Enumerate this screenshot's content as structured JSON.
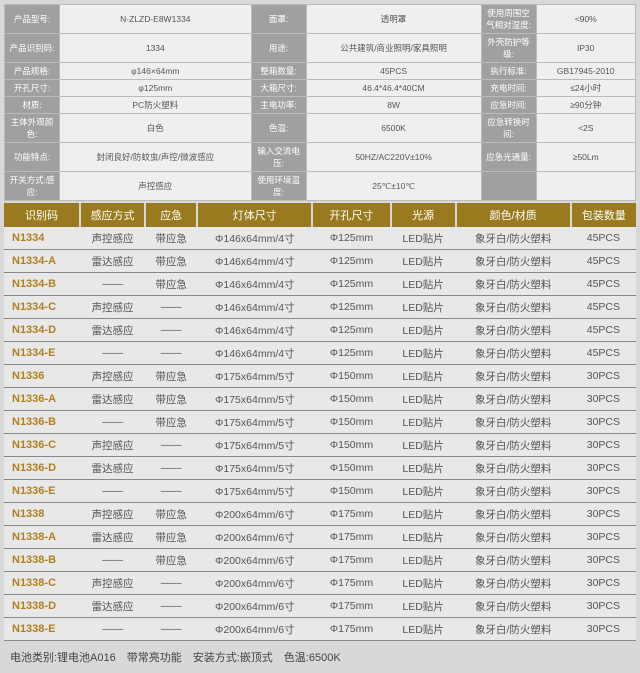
{
  "spec": {
    "rows": [
      [
        {
          "l": "产品型号:",
          "v": "N-ZLZD-E8W1334"
        },
        {
          "l": "面罩:",
          "v": "透明罩"
        },
        {
          "l": "使用周围空气相对湿度:",
          "v": "<90%",
          "span": 2
        }
      ],
      [
        {
          "l": "产品识别码:",
          "v": "1334"
        },
        {
          "l": "用途:",
          "v": "公共建筑/商业照明/家具照明"
        },
        {
          "l": "外壳防护等级:",
          "v": "IP30"
        }
      ],
      [
        {
          "l": "产品规格:",
          "v": "φ146×64mm"
        },
        {
          "l": "整箱数量:",
          "v": "45PCS"
        },
        {
          "l": "执行标准:",
          "v": "GB17945-2010"
        }
      ],
      [
        {
          "l": "开孔尺寸:",
          "v": "φ125mm"
        },
        {
          "l": "大箱尺寸:",
          "v": "46.4*46.4*40CM"
        },
        {
          "l": "充电时间:",
          "v": "≤24小时"
        }
      ],
      [
        {
          "l": "材质:",
          "v": "PC防火塑料"
        },
        {
          "l": "主电功率:",
          "v": "8W"
        },
        {
          "l": "应急时间:",
          "v": "≥90分钟"
        }
      ],
      [
        {
          "l": "主体外观颜色:",
          "v": "白色"
        },
        {
          "l": "色温:",
          "v": "6500K"
        },
        {
          "l": "应急转换时间:",
          "v": "<2S"
        }
      ],
      [
        {
          "l": "功能特点:",
          "v": "封闭良好/防蚊虫/声控/微波感应"
        },
        {
          "l": "输入交流电压:",
          "v": "50HZ/AC220V±10%"
        },
        {
          "l": "应急光通量:",
          "v": "≥50Lm"
        }
      ],
      [
        {
          "l": "开关方式:感应:",
          "v": "声控感应"
        },
        {
          "l": "使用环境温度:",
          "v": "25℃±10℃"
        },
        {
          "l": "",
          "v": ""
        }
      ]
    ]
  },
  "headers": [
    "识别码",
    "感应方式",
    "应急",
    "灯体尺寸",
    "开孔尺寸",
    "光源",
    "颜色/材质",
    "包装数量"
  ],
  "colwidths": [
    "70",
    "60",
    "48",
    "106",
    "72",
    "60",
    "106",
    "60"
  ],
  "rows": [
    [
      "N1334",
      "声控感应",
      "带应急",
      "Φ146x64mm/4寸",
      "Φ125mm",
      "LED贴片",
      "象牙白/防火塑料",
      "45PCS"
    ],
    [
      "N1334-A",
      "雷达感应",
      "带应急",
      "Φ146x64mm/4寸",
      "Φ125mm",
      "LED贴片",
      "象牙白/防火塑料",
      "45PCS"
    ],
    [
      "N1334-B",
      "——",
      "带应急",
      "Φ146x64mm/4寸",
      "Φ125mm",
      "LED贴片",
      "象牙白/防火塑料",
      "45PCS"
    ],
    [
      "N1334-C",
      "声控感应",
      "——",
      "Φ146x64mm/4寸",
      "Φ125mm",
      "LED贴片",
      "象牙白/防火塑料",
      "45PCS"
    ],
    [
      "N1334-D",
      "雷达感应",
      "——",
      "Φ146x64mm/4寸",
      "Φ125mm",
      "LED贴片",
      "象牙白/防火塑料",
      "45PCS"
    ],
    [
      "N1334-E",
      "——",
      "——",
      "Φ146x64mm/4寸",
      "Φ125mm",
      "LED贴片",
      "象牙白/防火塑料",
      "45PCS"
    ],
    [
      "N1336",
      "声控感应",
      "带应急",
      "Φ175x64mm/5寸",
      "Φ150mm",
      "LED贴片",
      "象牙白/防火塑料",
      "30PCS"
    ],
    [
      "N1336-A",
      "雷达感应",
      "带应急",
      "Φ175x64mm/5寸",
      "Φ150mm",
      "LED贴片",
      "象牙白/防火塑料",
      "30PCS"
    ],
    [
      "N1336-B",
      "——",
      "带应急",
      "Φ175x64mm/5寸",
      "Φ150mm",
      "LED贴片",
      "象牙白/防火塑料",
      "30PCS"
    ],
    [
      "N1336-C",
      "声控感应",
      "——",
      "Φ175x64mm/5寸",
      "Φ150mm",
      "LED贴片",
      "象牙白/防火塑料",
      "30PCS"
    ],
    [
      "N1336-D",
      "雷达感应",
      "——",
      "Φ175x64mm/5寸",
      "Φ150mm",
      "LED贴片",
      "象牙白/防火塑料",
      "30PCS"
    ],
    [
      "N1336-E",
      "——",
      "——",
      "Φ175x64mm/5寸",
      "Φ150mm",
      "LED贴片",
      "象牙白/防火塑料",
      "30PCS"
    ],
    [
      "N1338",
      "声控感应",
      "带应急",
      "Φ200x64mm/6寸",
      "Φ175mm",
      "LED贴片",
      "象牙白/防火塑料",
      "30PCS"
    ],
    [
      "N1338-A",
      "雷达感应",
      "带应急",
      "Φ200x64mm/6寸",
      "Φ175mm",
      "LED贴片",
      "象牙白/防火塑料",
      "30PCS"
    ],
    [
      "N1338-B",
      "——",
      "带应急",
      "Φ200x64mm/6寸",
      "Φ175mm",
      "LED贴片",
      "象牙白/防火塑料",
      "30PCS"
    ],
    [
      "N1338-C",
      "声控感应",
      "——",
      "Φ200x64mm/6寸",
      "Φ175mm",
      "LED贴片",
      "象牙白/防火塑料",
      "30PCS"
    ],
    [
      "N1338-D",
      "雷达感应",
      "——",
      "Φ200x64mm/6寸",
      "Φ175mm",
      "LED贴片",
      "象牙白/防火塑料",
      "30PCS"
    ],
    [
      "N1338-E",
      "——",
      "——",
      "Φ200x64mm/6寸",
      "Φ175mm",
      "LED贴片",
      "象牙白/防火塑料",
      "30PCS"
    ]
  ],
  "footer": "电池类别:锂电池A016　带常亮功能　安装方式:嵌顶式　色温:6500K"
}
